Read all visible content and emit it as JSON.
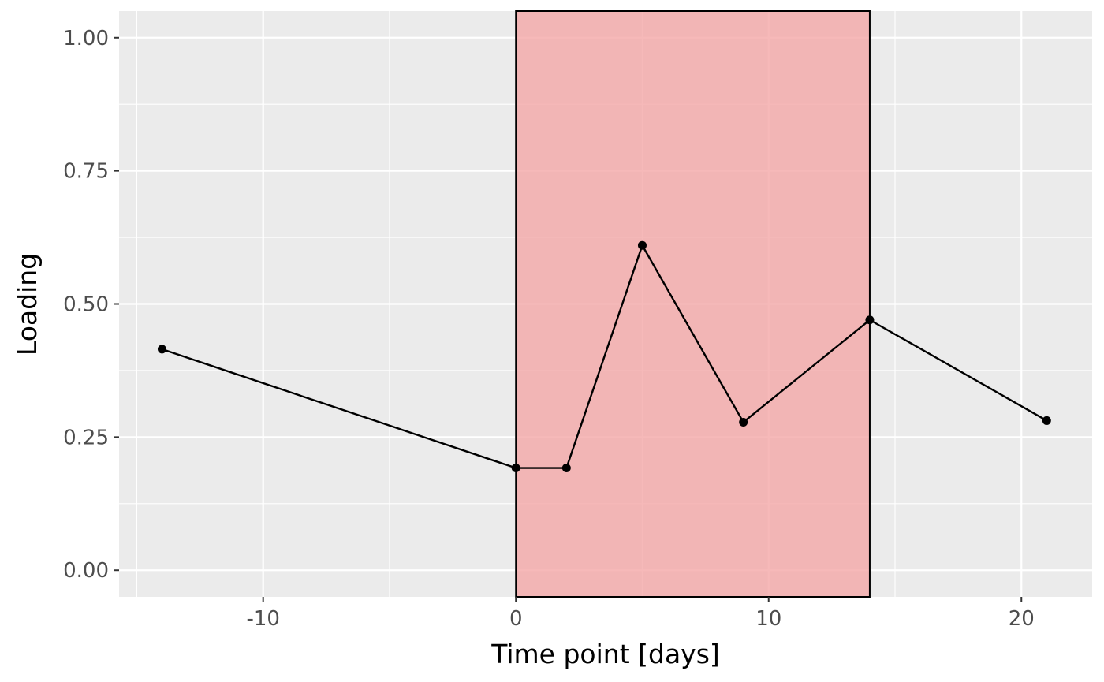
{
  "chart_data": {
    "type": "line",
    "xlabel": "Time point [days]",
    "ylabel": "Loading",
    "xlim": [
      -15.7,
      22.8
    ],
    "ylim": [
      -0.05,
      1.05
    ],
    "x_ticks": [
      -10,
      0,
      10,
      20
    ],
    "x_tick_labels": [
      "-10",
      "0",
      "10",
      "20"
    ],
    "y_ticks": [
      0,
      0.25,
      0.5,
      0.75,
      1
    ],
    "y_tick_labels": [
      "0.00",
      "0.25",
      "0.50",
      "0.75",
      "1.00"
    ],
    "grid": true,
    "legend": "none",
    "shaded_region": {
      "x_start": 0,
      "x_end": 14,
      "color": "#f4a7a7",
      "opacity": 0.8,
      "border": "#000000"
    },
    "series": [
      {
        "x": [
          -14,
          0,
          2,
          5,
          9,
          14,
          21
        ],
        "y": [
          0.415,
          0.192,
          0.192,
          0.61,
          0.278,
          0.47,
          0.281
        ],
        "color": "#000000"
      }
    ]
  },
  "colors": {
    "panel_background": "#ebebeb",
    "gridline": "#ffffff",
    "tick_text": "#4d4d4d"
  }
}
